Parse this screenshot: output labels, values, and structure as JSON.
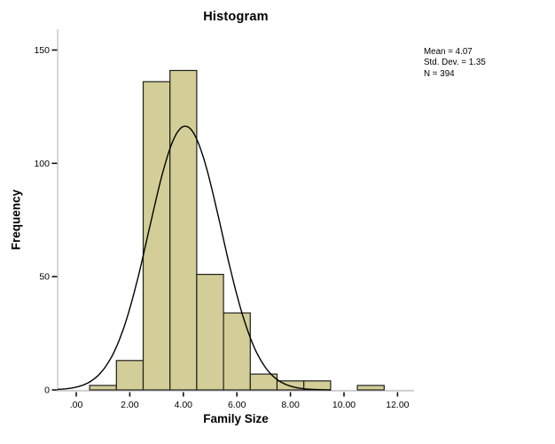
{
  "window": {
    "background": "#ffffff"
  },
  "chart_data": {
    "type": "bar",
    "subtype": "histogram",
    "title": "Histogram",
    "xlabel": "Family Size",
    "ylabel": "Frequency",
    "bin_width": 1,
    "categories": [
      1,
      2,
      3,
      4,
      5,
      6,
      7,
      8,
      9,
      10,
      11
    ],
    "values": [
      2,
      13,
      136,
      141,
      51,
      34,
      7,
      4,
      4,
      0,
      2
    ],
    "x_ticks": [
      {
        "value": 0,
        "label": ".00"
      },
      {
        "value": 2,
        "label": "2.00"
      },
      {
        "value": 4,
        "label": "4.00"
      },
      {
        "value": 6,
        "label": "6.00"
      },
      {
        "value": 8,
        "label": "8.00"
      },
      {
        "value": 10,
        "label": "10.00"
      },
      {
        "value": 12,
        "label": "12.00"
      }
    ],
    "y_ticks": [
      {
        "value": 0,
        "label": "0"
      },
      {
        "value": 50,
        "label": "50"
      },
      {
        "value": 100,
        "label": "100"
      },
      {
        "value": 150,
        "label": "150"
      }
    ],
    "xlim": [
      -0.7,
      12.6
    ],
    "ylim": [
      0,
      152
    ],
    "grid": false,
    "legend": null,
    "normal_curve": {
      "mean": 4.07,
      "std_dev": 1.35,
      "n": 394,
      "curve_end_x": 9.5
    },
    "annotation": {
      "position": "top-right",
      "lines": [
        "Mean = 4.07",
        "Std. Dev. = 1.35",
        "N = 394"
      ]
    },
    "colors": {
      "bar_fill": "#d3ce97",
      "bar_stroke": "#1f1f1f",
      "curve": "#000000",
      "axis_line": "#cccccc",
      "tick": "#111111",
      "text": "#000000",
      "background": "#ffffff"
    }
  }
}
